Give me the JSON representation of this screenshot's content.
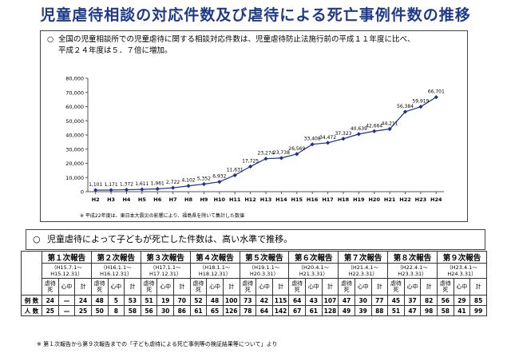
{
  "page": {
    "title": "児童虐待相談の対応件数及び虐待による死亡事例件数の推移"
  },
  "section1": {
    "bullet": "○",
    "line1": "全国の児童相談所での児童虐待に関する相談対応件数は、児童虐待防止法施行前の平成１１年度に比べ、",
    "line2": "平成２４年度は５．７倍に増加。"
  },
  "chart_note": "※ 平成22年度は、東日本大震災の影響により、福島県を除いて集計した数値",
  "chart_data": {
    "type": "line",
    "categories": [
      "H2",
      "H3",
      "H4",
      "H5",
      "H6",
      "H7",
      "H8",
      "H9",
      "H10",
      "H11",
      "H12",
      "H13",
      "H14",
      "H15",
      "H16",
      "H17",
      "H18",
      "H19",
      "H20",
      "H21",
      "H22",
      "H23",
      "H24"
    ],
    "values": [
      1101,
      1171,
      1372,
      1611,
      1961,
      2722,
      4102,
      5352,
      6932,
      11631,
      17725,
      23274,
      23738,
      26569,
      33408,
      34472,
      37323,
      40639,
      42664,
      44211,
      56384,
      59919,
      66701
    ],
    "labels": [
      "1,101",
      "1,171",
      "1,372",
      "1,611",
      "1,961",
      "2,722",
      "4,102",
      "5,352",
      "6,932",
      "11,631",
      "17,725",
      "23,274",
      "23,738",
      "26,569",
      "33,408",
      "34,472",
      "37,323",
      "40,639",
      "42,664",
      "44,211",
      "56,384",
      "59,919",
      "66,701"
    ],
    "ylim": [
      0,
      80000
    ],
    "yticks": [
      0,
      10000,
      20000,
      30000,
      40000,
      50000,
      60000,
      70000,
      80000
    ],
    "ytick_labels": [
      "0",
      "10,000",
      "20,000",
      "30,000",
      "40,000",
      "50,000",
      "60,000",
      "70,000",
      "80,000"
    ],
    "color": "#1f2f8f",
    "grid": false
  },
  "section2": {
    "bullet": "○",
    "text": "児童虐待によって子どもが死亡した件数は、高い水準で推移。"
  },
  "table": {
    "sub_headers": [
      "虐待死",
      "心中",
      "計"
    ],
    "row_labels": [
      "例 数",
      "人 数"
    ],
    "reports": [
      {
        "name": "第１次報告",
        "period1": "（H15.7.1～",
        "period2": "H15.12.31）",
        "cases": [
          "24",
          "—",
          "24"
        ],
        "people": [
          "25",
          "—",
          "25"
        ]
      },
      {
        "name": "第２次報告",
        "period1": "（H16.1.1～",
        "period2": "H16.12.31）",
        "cases": [
          "48",
          "5",
          "53"
        ],
        "people": [
          "50",
          "8",
          "58"
        ]
      },
      {
        "name": "第３次報告",
        "period1": "（H17.1.1～",
        "period2": "H17.12.31）",
        "cases": [
          "51",
          "19",
          "70"
        ],
        "people": [
          "56",
          "30",
          "86"
        ]
      },
      {
        "name": "第４次報告",
        "period1": "（H18.1.1～",
        "period2": "H18.12.31）",
        "cases": [
          "52",
          "48",
          "100"
        ],
        "people": [
          "61",
          "65",
          "126"
        ]
      },
      {
        "name": "第５次報告",
        "period1": "（H19.1.1～",
        "period2": "H20.3.31）",
        "cases": [
          "73",
          "42",
          "115"
        ],
        "people": [
          "78",
          "64",
          "142"
        ]
      },
      {
        "name": "第６次報告",
        "period1": "（H20.4.1～",
        "period2": "H21.3.31）",
        "cases": [
          "64",
          "43",
          "107"
        ],
        "people": [
          "67",
          "61",
          "128"
        ]
      },
      {
        "name": "第７次報告",
        "period1": "（H21.4.1～",
        "period2": "H22.3.31）",
        "cases": [
          "47",
          "30",
          "77"
        ],
        "people": [
          "49",
          "39",
          "88"
        ]
      },
      {
        "name": "第８次報告",
        "period1": "（H22.4.1～",
        "period2": "H23.3.31）",
        "cases": [
          "45",
          "37",
          "82"
        ],
        "people": [
          "51",
          "47",
          "98"
        ]
      },
      {
        "name": "第９次報告",
        "period1": "（H23.4.1～",
        "period2": "H24.3.31）",
        "cases": [
          "56",
          "29",
          "85"
        ],
        "people": [
          "58",
          "41",
          "99"
        ]
      }
    ]
  },
  "footnote": "※ 第１次報告から第９次報告までの「子ども虐待による死亡事例等の検証結果等について」より"
}
